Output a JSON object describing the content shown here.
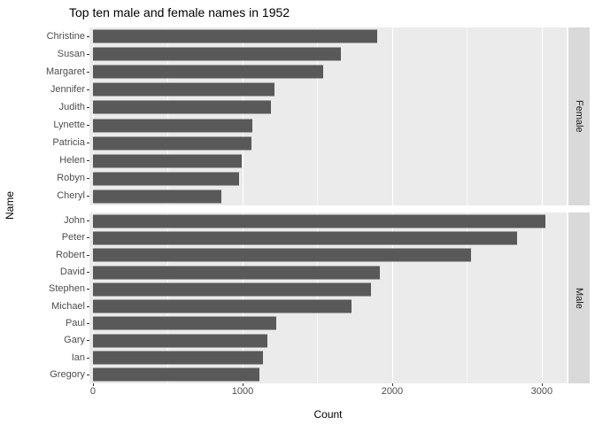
{
  "chart_data": {
    "type": "bar",
    "orientation": "horizontal",
    "title": "Top ten male and female names in 1952",
    "xlabel": "Count",
    "ylabel": "Name",
    "x_ticks": [
      0,
      1000,
      2000,
      3000
    ],
    "x_minor_ticks": [
      500,
      1500,
      2500
    ],
    "xlim": [
      0,
      3178
    ],
    "grid": "on",
    "legend_position": "none",
    "bar_color": "#595959",
    "panel_bg": "#EBEBEB",
    "strip_bg": "#D9D9D9",
    "grid_color": "#FFFFFF",
    "facets": [
      {
        "label": "Female",
        "categories": [
          "Christine",
          "Susan",
          "Margaret",
          "Jennifer",
          "Judith",
          "Lynette",
          "Patricia",
          "Helen",
          "Robyn",
          "Cheryl"
        ],
        "values": [
          1900,
          1655,
          1540,
          1215,
          1190,
          1065,
          1060,
          995,
          975,
          860
        ]
      },
      {
        "label": "Male",
        "categories": [
          "John",
          "Peter",
          "Robert",
          "David",
          "Stephen",
          "Michael",
          "Paul",
          "Gary",
          "Ian",
          "Gregory"
        ],
        "values": [
          3025,
          2835,
          2525,
          1915,
          1860,
          1730,
          1225,
          1165,
          1135,
          1110
        ]
      }
    ]
  }
}
